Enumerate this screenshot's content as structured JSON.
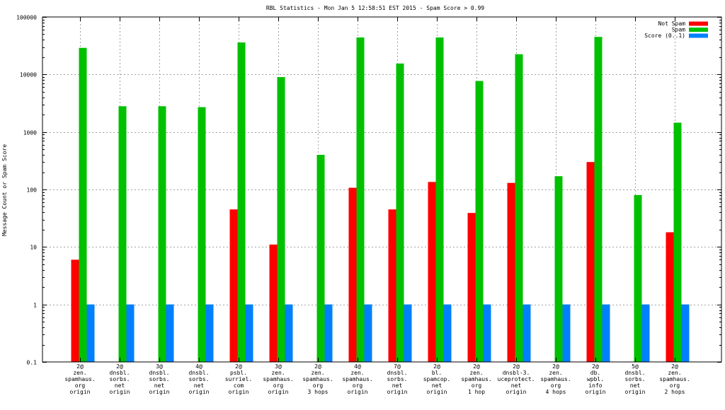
{
  "chart_data": {
    "type": "bar",
    "title": "RBL Statistics - Mon Jan  5 12:58:51 EST 2015 - Spam Score > 0.99",
    "xlabel": "",
    "ylabel": "Message Count or Spam Score",
    "yscale": "log",
    "ylim": [
      0.1,
      100000
    ],
    "yticks": [
      0.1,
      1,
      10,
      100,
      1000,
      10000,
      100000
    ],
    "ytick_labels": [
      "0.1",
      "1",
      "10",
      "100",
      "1000",
      "10000",
      "100000"
    ],
    "grid": true,
    "legend_position": "top-right",
    "categories": [
      [
        "2@",
        "zen.",
        "spamhaus.",
        "org",
        "origin"
      ],
      [
        "2@",
        "dnsbl.",
        "sorbs.",
        "net",
        "origin"
      ],
      [
        "3@",
        "dnsbl.",
        "sorbs.",
        "net",
        "origin"
      ],
      [
        "4@",
        "dnsbl.",
        "sorbs.",
        "net",
        "origin"
      ],
      [
        "2@",
        "psbl.",
        "surriel.",
        "com",
        "origin"
      ],
      [
        "3@",
        "zen.",
        "spamhaus.",
        "org",
        "origin"
      ],
      [
        "2@",
        "zen.",
        "spamhaus.",
        "org",
        "3 hops"
      ],
      [
        "4@",
        "zen.",
        "spamhaus.",
        "org",
        "origin"
      ],
      [
        "7@",
        "dnsbl.",
        "sorbs.",
        "net",
        "origin"
      ],
      [
        "2@",
        "bl.",
        "spamcop.",
        "net",
        "origin"
      ],
      [
        "2@",
        "zen.",
        "spamhaus.",
        "org",
        "1 hop"
      ],
      [
        "2@",
        "dnsbl-3.",
        "uceprotect.",
        "net",
        "origin"
      ],
      [
        "2@",
        "zen.",
        "spamhaus.",
        "org",
        "4 hops"
      ],
      [
        "2@",
        "db.",
        "wpbl.",
        "info",
        "origin"
      ],
      [
        "5@",
        "dnsbl.",
        "sorbs.",
        "net",
        "origin"
      ],
      [
        "2@",
        "zen.",
        "spamhaus.",
        "org",
        "2 hops"
      ]
    ],
    "series": [
      {
        "name": "Not Spam",
        "color": "#ff0000",
        "values": [
          6,
          null,
          null,
          null,
          45,
          11,
          null,
          107,
          45,
          135,
          39,
          130,
          null,
          300,
          null,
          18
        ]
      },
      {
        "name": "Spam",
        "color": "#00c000",
        "values": [
          29000,
          2800,
          2800,
          2700,
          36000,
          9000,
          400,
          44000,
          15500,
          44000,
          7700,
          22500,
          170,
          45000,
          80,
          1450
        ]
      },
      {
        "name": "Score (0..1)",
        "color": "#0080ff",
        "values": [
          1,
          1,
          1,
          1,
          1,
          1,
          1,
          1,
          1,
          1,
          1,
          1,
          1,
          1,
          1,
          1
        ]
      }
    ]
  }
}
